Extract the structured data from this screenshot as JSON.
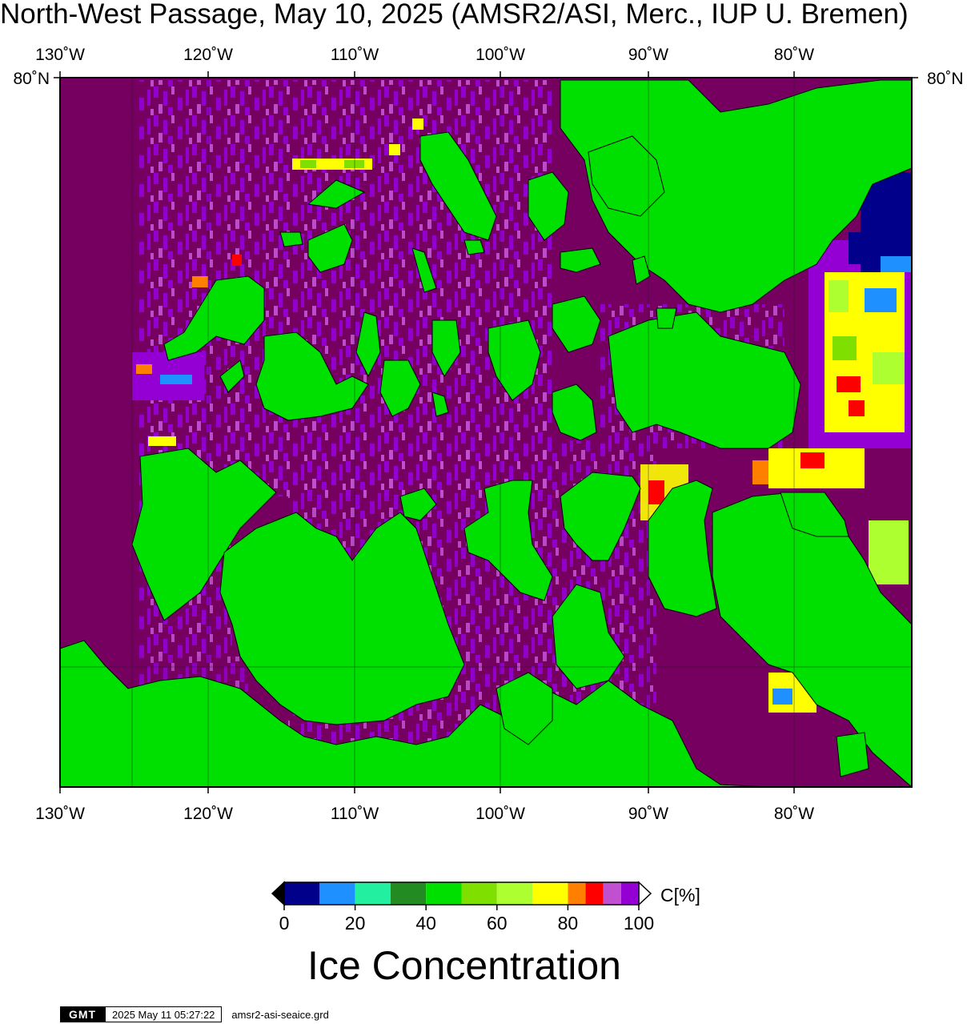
{
  "title": "North-West Passage, May 10, 2025 (AMSR2/ASI, Merc., IUP U. Bremen)",
  "lon_ticks": [
    "130˚W",
    "120˚W",
    "110˚W",
    "100˚W",
    "90˚W",
    "80˚W"
  ],
  "lat_ticks": [
    "80˚N"
  ],
  "colorbar": {
    "title": "Ice Concentration",
    "unit_label": "C[%]",
    "tick_labels": [
      "0",
      "20",
      "40",
      "60",
      "80",
      "100"
    ],
    "colors": [
      "#00008b",
      "#1e90ff",
      "#22f0a0",
      "#228b22",
      "#00e000",
      "#7fe000",
      "#adff2f",
      "#ffff00",
      "#ff8000",
      "#ff0000",
      "#c050d0",
      "#9400d3"
    ],
    "below_color": "#000000",
    "above_color": "#ffffff"
  },
  "legend_colors": {
    "land": "#00e000",
    "high_ice": "#760060",
    "ice_90": "#9400d3",
    "ice_95": "#c050d0"
  },
  "footer": {
    "logo": "GMT",
    "timestamp": "2025 May 11 05:27:22",
    "filename": "amsr2-asi-seaice.grd"
  }
}
